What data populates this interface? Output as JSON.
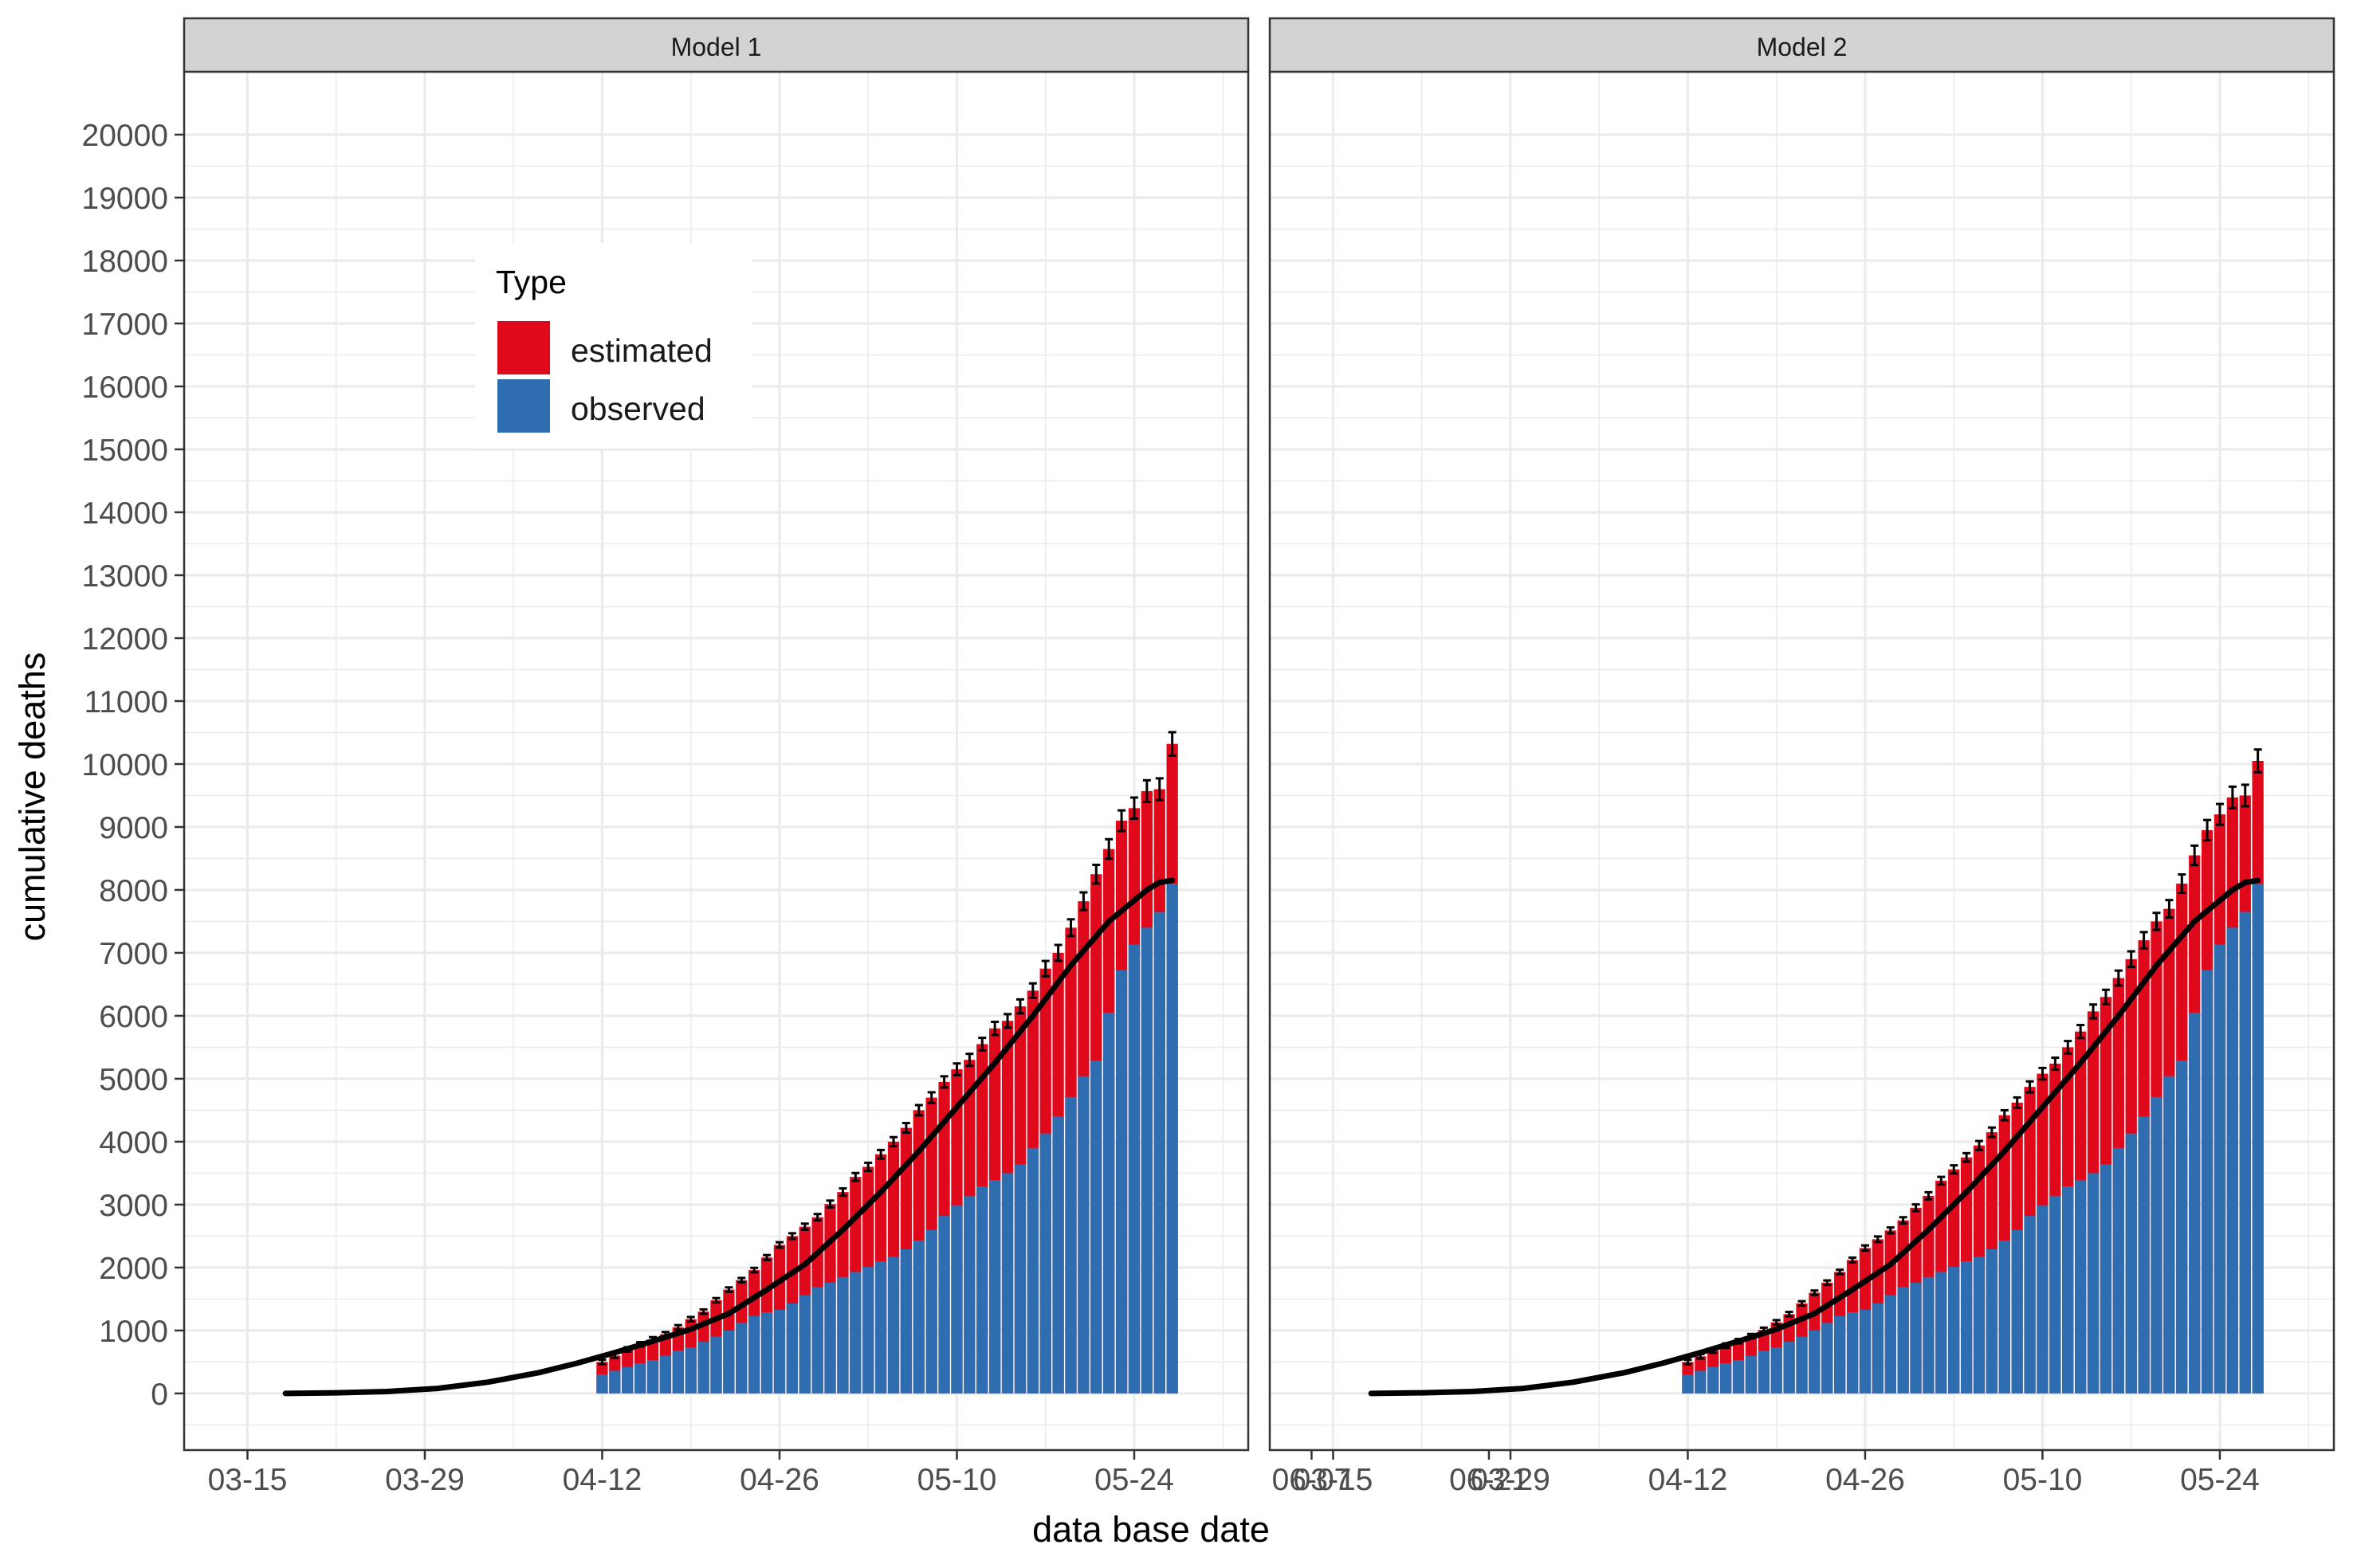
{
  "chart_data": {
    "type": "bar",
    "title": "",
    "xlabel": "data base date",
    "ylabel": "cumulative deaths",
    "x_ticks": [
      "03-15",
      "03-29",
      "04-12",
      "04-26",
      "05-10",
      "05-24",
      "06-07",
      "06-21"
    ],
    "y_ticks": [
      0,
      1000,
      2000,
      3000,
      4000,
      5000,
      6000,
      7000,
      8000,
      9000,
      10000,
      11000,
      12000,
      13000,
      14000,
      15000,
      16000,
      17000,
      18000,
      19000,
      20000
    ],
    "ylim": [
      -900,
      21000
    ],
    "x_range_days_from_03_15": [
      -5,
      79
    ],
    "legend": {
      "title": "Type",
      "position": "top-left inside panel 1",
      "entries": [
        {
          "label": "estimated",
          "color": "#e0091c"
        },
        {
          "label": "observed",
          "color": "#2e6eb0"
        }
      ]
    },
    "colors": {
      "estimated": "#e0091c",
      "observed": "#2e6eb0",
      "line": "#000000",
      "strip": "#d3d3d3",
      "grid": "#ebebeb"
    },
    "bar_dates": [
      "04-12",
      "04-13",
      "04-14",
      "04-15",
      "04-16",
      "04-17",
      "04-18",
      "04-19",
      "04-20",
      "04-21",
      "04-22",
      "04-23",
      "04-24",
      "04-25",
      "04-26",
      "04-27",
      "04-28",
      "04-29",
      "04-30",
      "05-01",
      "05-02",
      "05-03",
      "05-04",
      "05-05",
      "05-06",
      "05-07",
      "05-08",
      "05-09",
      "05-10",
      "05-11",
      "05-12",
      "05-13",
      "05-14",
      "05-15",
      "05-16",
      "05-17",
      "05-18",
      "05-19",
      "05-20",
      "05-21",
      "05-22",
      "05-23",
      "05-24",
      "05-25",
      "05-26",
      "05-27"
    ],
    "observed": [
      300,
      360,
      420,
      480,
      530,
      600,
      680,
      730,
      820,
      900,
      1000,
      1120,
      1230,
      1290,
      1330,
      1430,
      1560,
      1690,
      1760,
      1850,
      1930,
      2010,
      2100,
      2170,
      2290,
      2430,
      2600,
      2820,
      2990,
      3140,
      3290,
      3390,
      3500,
      3640,
      3900,
      4130,
      4400,
      4710,
      5040,
      5290,
      6050,
      6730,
      7130,
      7400,
      7650,
      8100
    ],
    "line": {
      "x": [
        "03-18",
        "03-22",
        "03-26",
        "03-30",
        "04-03",
        "04-07",
        "04-10",
        "04-13",
        "04-16",
        "04-19",
        "04-22",
        "04-25",
        "04-28",
        "05-01",
        "05-04",
        "05-07",
        "05-10",
        "05-13",
        "05-16",
        "05-19",
        "05-22",
        "05-25",
        "05-26",
        "05-27"
      ],
      "y": [
        0,
        10,
        30,
        80,
        180,
        330,
        480,
        650,
        830,
        1020,
        1270,
        1650,
        2050,
        2600,
        3200,
        3850,
        4550,
        5250,
        6000,
        6800,
        7500,
        8000,
        8120,
        8150
      ]
    },
    "panels": [
      {
        "title": "Model 1",
        "series": [
          {
            "name": "estimated",
            "values": [
              500,
              600,
              700,
              780,
              860,
              940,
              1050,
              1180,
              1300,
              1480,
              1650,
              1800,
              1960,
              2160,
              2360,
              2500,
              2650,
              2800,
              3010,
              3200,
              3440,
              3600,
              3800,
              4000,
              4220,
              4500,
              4700,
              4950,
              5150,
              5300,
              5550,
              5800,
              5920,
              6150,
              6400,
              6750,
              7000,
              7400,
              7820,
              8250,
              8650,
              9100,
              9300,
              9570,
              9600,
              10320
            ]
          },
          {
            "name": "observed"
          }
        ]
      },
      {
        "title": "Model 2",
        "series": [
          {
            "name": "estimated",
            "values": [
              500,
              590,
              680,
              760,
              830,
              910,
              1010,
              1130,
              1260,
              1430,
              1600,
              1760,
              1930,
              2120,
              2310,
              2450,
              2590,
              2750,
              2950,
              3140,
              3380,
              3560,
              3750,
              3940,
              4150,
              4420,
              4620,
              4870,
              5080,
              5240,
              5500,
              5750,
              6070,
              6300,
              6600,
              6900,
              7200,
              7500,
              7700,
              8100,
              8550,
              8950,
              9200,
              9470,
              9500,
              10050
            ]
          },
          {
            "name": "observed"
          }
        ]
      }
    ]
  }
}
